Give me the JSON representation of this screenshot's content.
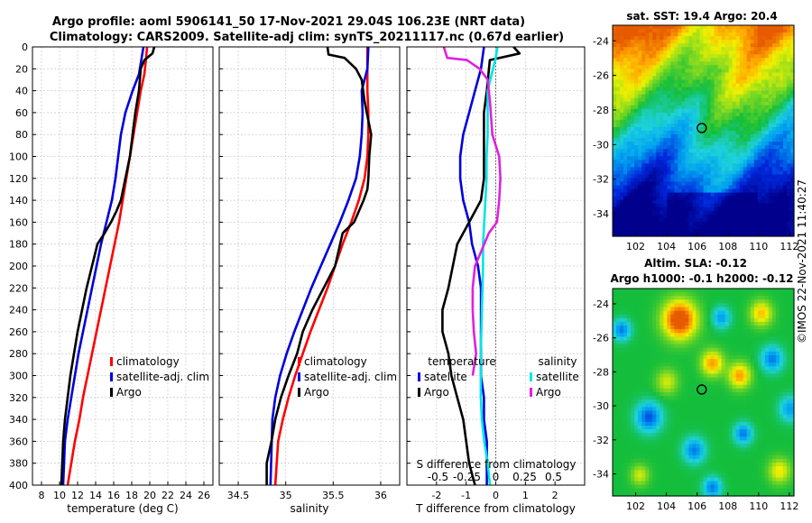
{
  "title_line1": "Argo profile: aoml 5906141_50 17-Nov-2021 29.04S 106.23E (NRT data)",
  "title_line2": "Climatology: CARS2009. Satellite-adj clim: synTS_20211117.nc (0.67d earlier)",
  "credit": "©IMOS 22-Nov-2021 11:40:27",
  "colors": {
    "clim": "#ff0000",
    "sat": "#0000dd",
    "argo": "#000000",
    "sat_s": "#00e5e5",
    "argo_s": "#e020e0"
  },
  "chart_data": [
    {
      "id": "temp",
      "type": "line",
      "xlabel": "temperature (deg C)",
      "ylabel": "",
      "xlim": [
        7,
        27
      ],
      "ylim": [
        0,
        400
      ],
      "xticks": [
        8,
        10,
        12,
        14,
        16,
        18,
        20,
        22,
        24,
        26
      ],
      "yticks": [
        0,
        20,
        40,
        60,
        80,
        100,
        120,
        140,
        160,
        180,
        200,
        220,
        240,
        260,
        280,
        300,
        320,
        340,
        360,
        380,
        400
      ],
      "legend": [
        "climatology",
        "satellite-adj. clim",
        "Argo"
      ],
      "series": [
        {
          "name": "climatology",
          "x": [
            19.7,
            19.6,
            19.4,
            19.0,
            18.6,
            18.2,
            17.8,
            17.4,
            17.0,
            16.6,
            16.1,
            15.6,
            15.1,
            14.6,
            14.1,
            13.6,
            13.1,
            12.6,
            12.2,
            11.7,
            11.3,
            10.9
          ],
          "y": [
            0,
            10,
            25,
            40,
            60,
            80,
            100,
            120,
            140,
            160,
            180,
            200,
            220,
            240,
            260,
            280,
            300,
            320,
            340,
            360,
            380,
            400
          ]
        },
        {
          "name": "satellite-adj. clim",
          "x": [
            19.3,
            19.1,
            18.8,
            18.1,
            17.3,
            16.8,
            16.5,
            16.2,
            15.8,
            15.2,
            14.6,
            14.1,
            13.6,
            13.1,
            12.6,
            12.1,
            11.7,
            11.3,
            10.9,
            10.6,
            10.4
          ],
          "y": [
            0,
            10,
            25,
            40,
            60,
            80,
            100,
            120,
            140,
            160,
            180,
            200,
            220,
            240,
            260,
            280,
            300,
            320,
            340,
            360,
            400
          ]
        },
        {
          "name": "Argo",
          "x": [
            20.5,
            20.3,
            19.4,
            19.0,
            18.8,
            18.4,
            18.1,
            17.8,
            17.3,
            16.8,
            16.3,
            15.7,
            15.0,
            14.2,
            13.6,
            13.0,
            12.5,
            12.0,
            11.6,
            11.2,
            10.9,
            10.6,
            10.4,
            10.2
          ],
          "y": [
            0,
            6,
            12,
            20,
            40,
            60,
            80,
            100,
            120,
            140,
            150,
            160,
            170,
            180,
            200,
            220,
            240,
            260,
            280,
            300,
            320,
            340,
            360,
            400
          ]
        }
      ]
    },
    {
      "id": "salt",
      "type": "line",
      "xlabel": "salinity",
      "ylabel": "",
      "xlim": [
        34.3,
        36.2
      ],
      "ylim": [
        0,
        400
      ],
      "xticks": [
        34.5,
        35,
        35.5,
        36
      ],
      "legend": [
        "climatology",
        "satellite-adj. clim",
        "Argo"
      ],
      "series": [
        {
          "name": "climatology",
          "x": [
            35.86,
            35.86,
            35.86,
            35.87,
            35.87,
            35.86,
            35.83,
            35.77,
            35.69,
            35.6,
            35.52,
            35.44,
            35.35,
            35.26,
            35.18,
            35.1,
            35.03,
            34.97,
            34.92,
            34.89
          ],
          "y": [
            0,
            20,
            40,
            60,
            80,
            100,
            120,
            140,
            160,
            180,
            200,
            220,
            240,
            260,
            280,
            300,
            320,
            340,
            360,
            400
          ]
        },
        {
          "name": "satellite-adj. clim",
          "x": [
            35.87,
            35.86,
            35.8,
            35.81,
            35.8,
            35.78,
            35.74,
            35.66,
            35.57,
            35.47,
            35.37,
            35.27,
            35.18,
            35.09,
            35.01,
            34.94,
            34.89,
            34.86,
            34.84
          ],
          "y": [
            0,
            20,
            40,
            60,
            80,
            100,
            120,
            140,
            160,
            180,
            200,
            220,
            240,
            260,
            280,
            300,
            320,
            340,
            400
          ]
        },
        {
          "name": "Argo",
          "x": [
            35.44,
            35.45,
            35.62,
            35.74,
            35.8,
            35.83,
            35.9,
            35.88,
            35.87,
            35.86,
            35.82,
            35.72,
            35.6,
            35.52,
            35.4,
            35.28,
            35.18,
            35.12,
            35.03,
            34.95,
            34.89,
            34.85,
            34.8,
            34.8
          ],
          "y": [
            0,
            7,
            10,
            20,
            30,
            50,
            80,
            100,
            120,
            130,
            140,
            160,
            170,
            200,
            220,
            240,
            260,
            280,
            300,
            320,
            340,
            360,
            380,
            400
          ]
        }
      ]
    },
    {
      "id": "diff",
      "type": "line",
      "xlabel": "T difference from climatology",
      "top_label": "S difference from climatology",
      "xlim": [
        -3,
        3
      ],
      "ylim": [
        0,
        400
      ],
      "xticks": [
        -2,
        -1,
        0,
        1,
        2
      ],
      "s_ticks": [
        "-0.5",
        "-0.25",
        "0",
        "0.25",
        "0.5"
      ],
      "s_ticks_values": [
        -0.5,
        -0.25,
        0,
        0.25,
        0.5
      ],
      "legend_t_title": "temperature",
      "legend_s_title": "salinity",
      "legend_t": [
        "satellite",
        "Argo"
      ],
      "legend_s": [
        "satellite",
        "Argo"
      ],
      "series": [
        {
          "name": "T satellite",
          "x": [
            -0.4,
            -0.5,
            -0.7,
            -0.9,
            -1.1,
            -1.2,
            -1.2,
            -1.1,
            -0.9,
            -0.8,
            -0.6,
            -0.5,
            -0.5,
            -0.5,
            -0.5,
            -0.5,
            -0.4,
            -0.4,
            -0.3,
            -0.3,
            -0.3
          ],
          "y": [
            0,
            20,
            40,
            60,
            80,
            100,
            120,
            140,
            160,
            180,
            200,
            220,
            240,
            260,
            280,
            300,
            320,
            340,
            360,
            380,
            400
          ]
        },
        {
          "name": "T Argo",
          "x": [
            0.6,
            0.8,
            -0.2,
            -0.3,
            -0.4,
            -0.4,
            -0.4,
            -0.4,
            -0.5,
            -0.9,
            -1.3,
            -1.6,
            -1.8,
            -1.8,
            -1.6,
            -1.5,
            -1.3,
            -1.1,
            -1.0,
            -0.9,
            -0.8,
            -0.7
          ],
          "y": [
            0,
            6,
            12,
            40,
            60,
            80,
            100,
            120,
            140,
            160,
            180,
            220,
            240,
            260,
            280,
            300,
            320,
            340,
            360,
            380,
            390,
            400
          ]
        },
        {
          "name": "S satellite",
          "x": [
            0.015,
            0.0,
            -0.07,
            -0.07,
            -0.08,
            -0.08,
            -0.09,
            -0.1,
            -0.11,
            -0.11,
            -0.12,
            -0.13,
            -0.13,
            -0.13,
            -0.12,
            -0.1,
            -0.07,
            -0.05
          ],
          "y": [
            0,
            10,
            40,
            80,
            100,
            120,
            140,
            160,
            180,
            200,
            240,
            280,
            300,
            320,
            340,
            360,
            380,
            400
          ]
        },
        {
          "name": "S Argo",
          "x": [
            -0.45,
            -0.42,
            -0.25,
            -0.14,
            -0.07,
            -0.05,
            -0.03,
            0.03,
            0.04,
            0.03,
            0.01,
            -0.06,
            -0.1,
            -0.14,
            -0.18,
            -0.2,
            -0.2,
            -0.19,
            -0.17,
            -0.2
          ],
          "y": [
            0,
            10,
            12,
            20,
            30,
            50,
            80,
            100,
            120,
            140,
            160,
            170,
            180,
            190,
            200,
            220,
            240,
            260,
            280,
            300
          ]
        }
      ]
    },
    {
      "id": "sst_map",
      "type": "heatmap",
      "title": "sat. SST: 19.4 Argo: 20.4",
      "xlim": [
        100.5,
        112.3
      ],
      "ylim": [
        -35.3,
        -23.1
      ],
      "xticks": [
        102,
        104,
        106,
        108,
        110,
        112
      ],
      "yticks": [
        -24,
        -26,
        -28,
        -30,
        -32,
        -34
      ],
      "marker": {
        "lon": 106.3,
        "lat": -29.04
      }
    },
    {
      "id": "sla_map",
      "type": "heatmap",
      "title": "Altim. SLA: -0.12",
      "subtitle": "Argo h1000: -0.1 h2000: -0.12",
      "xlim": [
        100.5,
        112.3
      ],
      "ylim": [
        -35.3,
        -23.1
      ],
      "xticks": [
        102,
        104,
        106,
        108,
        110,
        112
      ],
      "yticks": [
        -24,
        -26,
        -28,
        -30,
        -32,
        -34
      ],
      "marker": {
        "lon": 106.3,
        "lat": -29.04
      }
    }
  ]
}
